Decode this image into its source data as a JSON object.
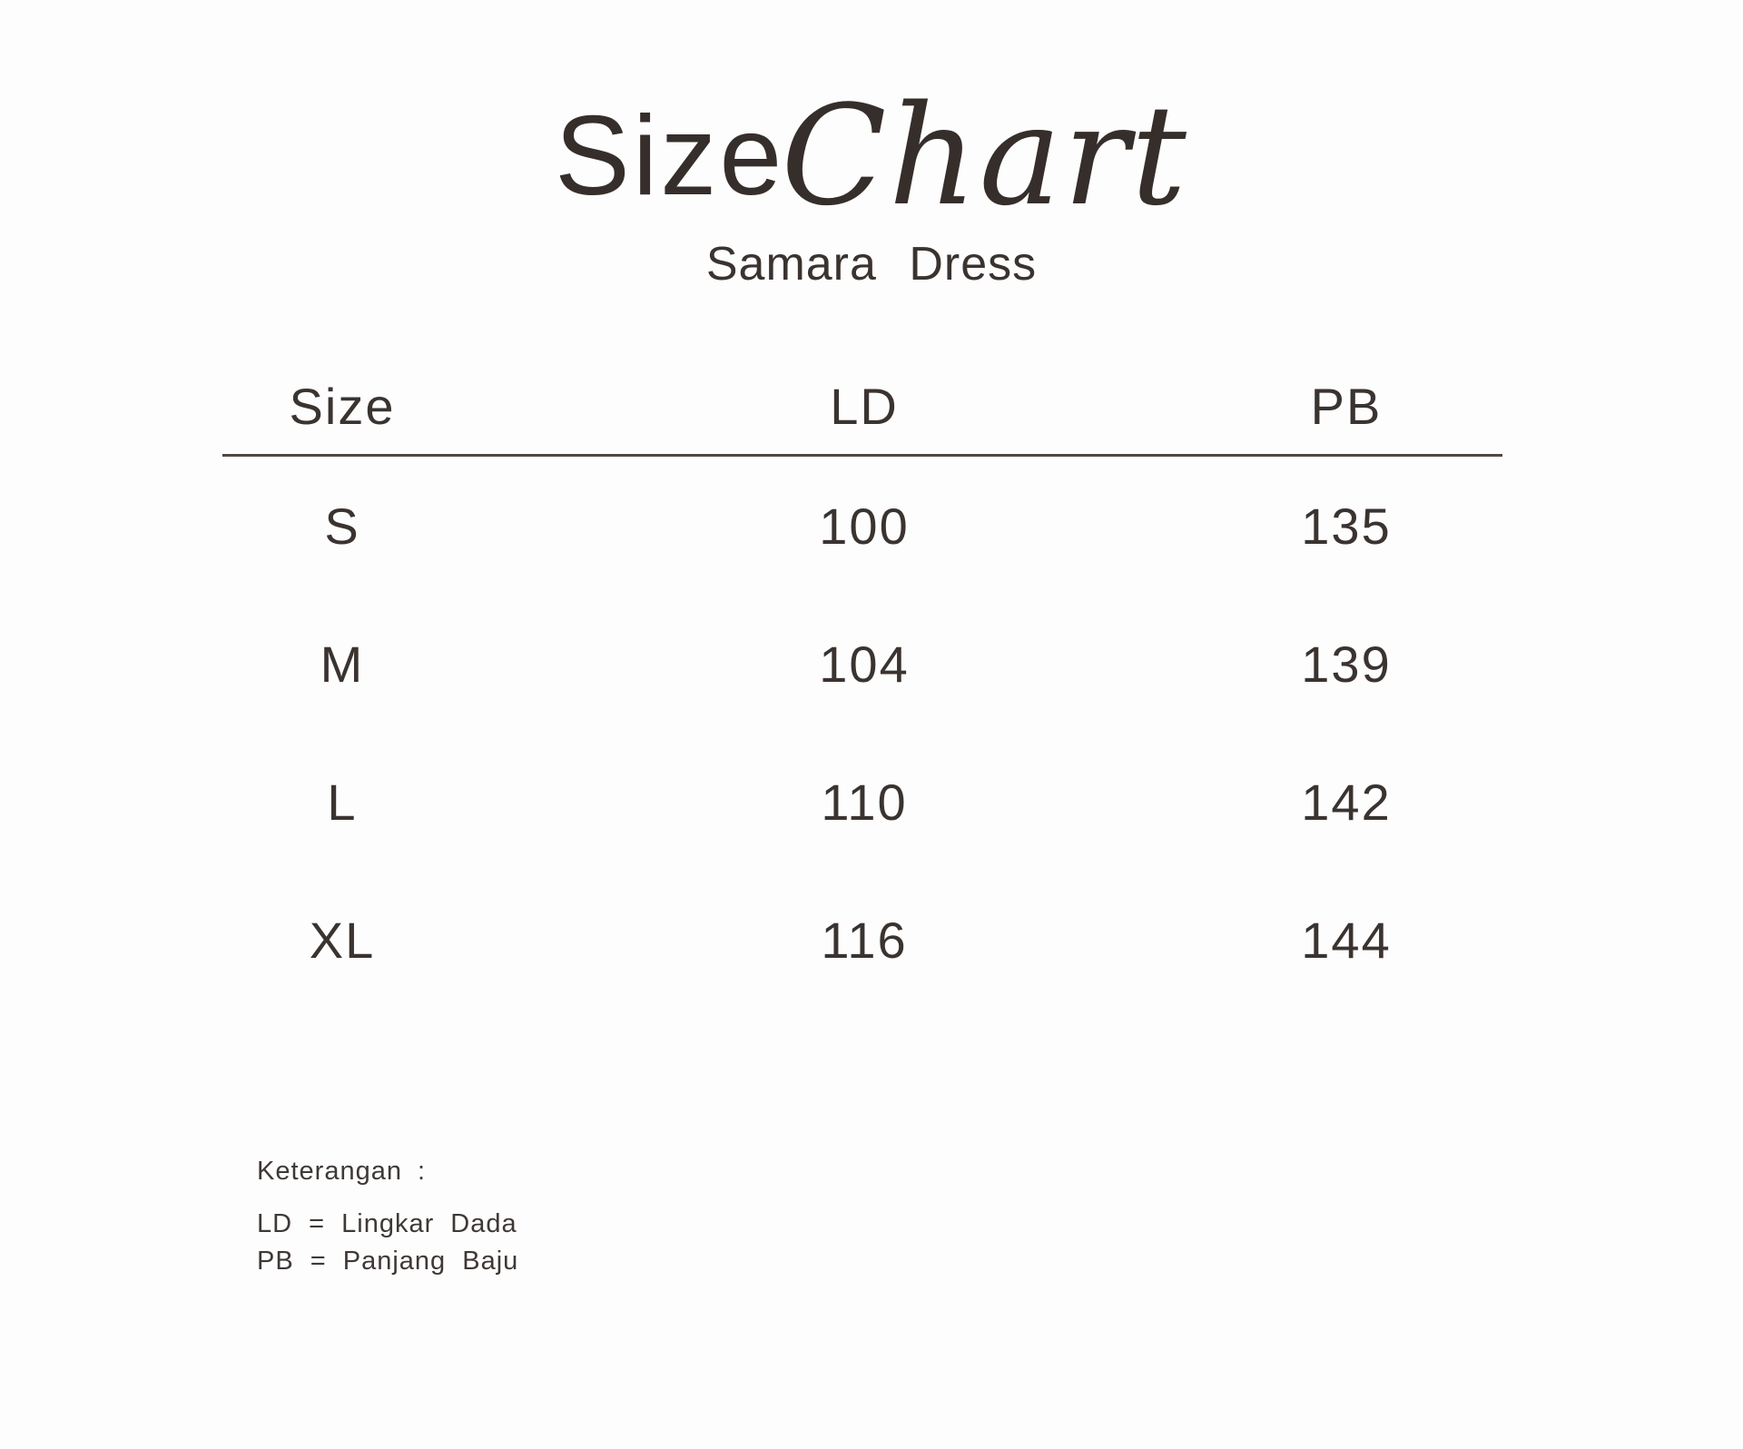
{
  "title": {
    "word_regular": "Size",
    "word_script": "Chart"
  },
  "subtitle": "Samara Dress",
  "notes": {
    "heading": "Keterangan :",
    "items": [
      "LD = Lingkar Dada",
      "PB = Panjang Baju"
    ]
  },
  "colors": {
    "background": "#fdfdfd",
    "text": "#3a3330",
    "title_ink": "#362e2b",
    "divider_line": "#4e4844"
  },
  "chart_data": {
    "type": "table",
    "title": "Size Chart",
    "subtitle": "Samara Dress",
    "columns": [
      "Size",
      "LD",
      "PB"
    ],
    "rows": [
      [
        "S",
        100,
        135
      ],
      [
        "M",
        104,
        139
      ],
      [
        "L",
        110,
        142
      ],
      [
        "XL",
        116,
        144
      ]
    ],
    "notes_heading": "Keterangan :",
    "notes": [
      "LD = Lingkar Dada",
      "PB = Panjang Baju"
    ]
  }
}
